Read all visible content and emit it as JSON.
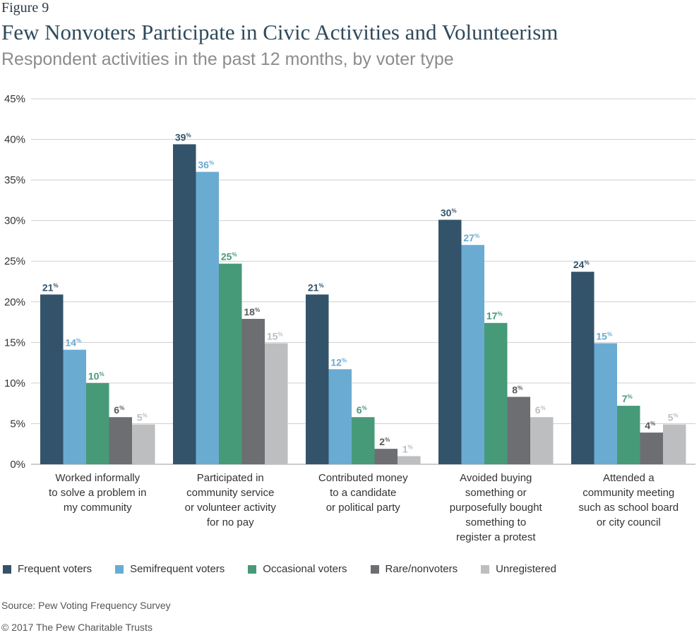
{
  "figure_label": "Figure 9",
  "chart_data": {
    "type": "bar",
    "title": "Few Nonvoters Participate in Civic Activities and Volunteerism",
    "subtitle": "Respondent activities in the past 12 months, by voter type",
    "xlabel": "",
    "ylabel": "",
    "ylim": [
      0,
      45
    ],
    "yticks": [
      0,
      5,
      10,
      15,
      20,
      25,
      30,
      35,
      40,
      45
    ],
    "ytick_labels": [
      "0%",
      "5%",
      "10%",
      "15%",
      "20%",
      "25%",
      "30%",
      "35%",
      "40%",
      "45%"
    ],
    "grid": true,
    "legend_position": "bottom",
    "categories": [
      [
        "Worked informally",
        "to solve a problem in",
        "my community"
      ],
      [
        "Participated in",
        "community service",
        "or volunteer activity",
        "for no pay"
      ],
      [
        "Contributed money",
        "to a candidate",
        "or political party"
      ],
      [
        "Avoided buying",
        "something or",
        "purposefully bought",
        "something to",
        "register a protest"
      ],
      [
        "Attended a",
        "community meeting",
        "such as school board",
        "or city council"
      ]
    ],
    "series": [
      {
        "name": "Frequent voters",
        "color": "#33536a",
        "label_color": "#33536a",
        "values": [
          20.9,
          39.4,
          20.9,
          30.1,
          23.7
        ],
        "labels": [
          "21",
          "39",
          "21",
          "30",
          "24"
        ]
      },
      {
        "name": "Semifrequent voters",
        "color": "#6aabd2",
        "label_color": "#6aabd2",
        "values": [
          14.1,
          36.0,
          11.7,
          27.0,
          14.9
        ],
        "labels": [
          "14",
          "36",
          "12",
          "27",
          "15"
        ]
      },
      {
        "name": "Occasional voters",
        "color": "#479a78",
        "label_color": "#479a78",
        "values": [
          10.0,
          24.7,
          5.8,
          17.4,
          7.2
        ],
        "labels": [
          "10",
          "25",
          "6",
          "17",
          "7"
        ]
      },
      {
        "name": "Rare/nonvoters",
        "color": "#6d6e71",
        "label_color": "#58595b",
        "values": [
          5.8,
          17.9,
          1.9,
          8.3,
          3.9
        ],
        "labels": [
          "6",
          "18",
          "2",
          "8",
          "4"
        ]
      },
      {
        "name": "Unregistered",
        "color": "#bcbec0",
        "label_color": "#bcbec0",
        "values": [
          4.9,
          14.9,
          1.0,
          5.8,
          4.9
        ],
        "labels": [
          "5",
          "15",
          "1",
          "6",
          "5"
        ]
      }
    ],
    "value_suffix": "%"
  },
  "source": "Source: Pew Voting Frequency Survey",
  "copyright": "© 2017 The Pew Charitable Trusts"
}
